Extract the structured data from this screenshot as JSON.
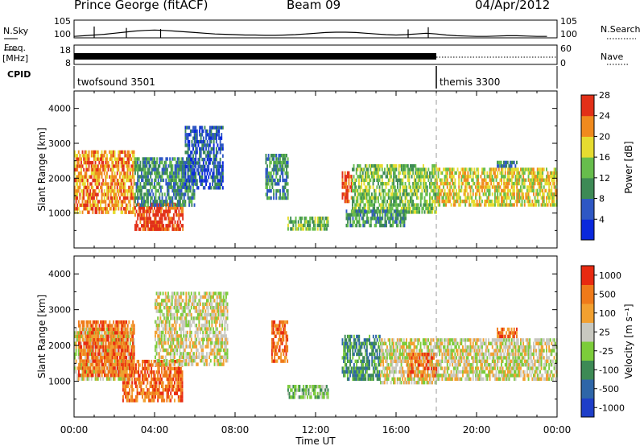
{
  "header": {
    "station": "Prince George (fitACF)",
    "beam": "Beam 09",
    "date": "04/Apr/2012"
  },
  "noise_panel": {
    "left_label": "N.Sky",
    "right_label": "N.Search",
    "ticks": [
      "10^5",
      "10^0"
    ],
    "sky_noise": [
      0.4,
      0.6,
      0.8,
      1.0,
      1.3,
      1.6,
      1.9,
      2.1,
      2.2,
      2.1,
      1.9,
      1.7,
      1.5,
      1.3,
      1.1,
      1.0,
      0.9,
      0.8,
      0.8,
      0.7,
      0.7,
      0.8,
      0.9,
      1.1,
      1.3,
      1.5,
      1.6,
      1.6,
      1.5,
      1.3,
      1.1,
      0.9,
      0.8,
      0.9,
      1.1,
      1.3,
      1.1,
      0.8,
      0.6,
      0.5,
      0.4,
      0.4,
      0.5,
      0.6,
      0.6,
      0.5,
      0.4,
      0.4
    ],
    "spikes": [
      {
        "t": 1.0,
        "v": 3.2
      },
      {
        "t": 2.6,
        "v": 2.8
      },
      {
        "t": 4.3,
        "v": 2.5
      },
      {
        "t": 16.6,
        "v": 2.4
      },
      {
        "t": 17.6,
        "v": 3.0
      }
    ]
  },
  "freq_panel": {
    "left_label_1": "Freq.",
    "left_label_2": "[MHz]",
    "right_label": "Nave",
    "left_ticks": [
      "18",
      "8"
    ],
    "right_ticks": [
      "60",
      "0"
    ],
    "filled_until": 18.0
  },
  "cpid": {
    "label": "CPID",
    "segments": [
      {
        "name": "twofsound",
        "id": "3501",
        "start": 0.0,
        "end": 18.0
      },
      {
        "name": "themis",
        "id": "3300",
        "start": 18.0,
        "end": 24.0
      }
    ],
    "boundary": 18.0
  },
  "chart_data": [
    {
      "type": "heatmap",
      "ylabel": "Slant Range [km]",
      "ylim": [
        0,
        4500
      ],
      "yticks": [
        1000,
        2000,
        3000,
        4000
      ],
      "xlim": [
        0,
        24
      ],
      "colorbar": {
        "label": "Power [dB]",
        "ticks": [
          4,
          8,
          12,
          16,
          20,
          24,
          28
        ],
        "colors": [
          "#0a28dc",
          "#2e57c4",
          "#3d8a55",
          "#67bd4c",
          "#e6dc30",
          "#f08a1e",
          "#e23018"
        ]
      },
      "echo_regions": [
        {
          "t0": 0.0,
          "t1": 3.0,
          "r0": 1000,
          "r1": 2800,
          "level": 5
        },
        {
          "t0": 3.0,
          "t1": 5.4,
          "r0": 550,
          "r1": 1300,
          "level": 6
        },
        {
          "t0": 3.0,
          "t1": 6.0,
          "r0": 1200,
          "r1": 2600,
          "level": 2
        },
        {
          "t0": 5.5,
          "t1": 7.4,
          "r0": 1700,
          "r1": 3500,
          "level": 1
        },
        {
          "t0": 9.5,
          "t1": 10.6,
          "r0": 1400,
          "r1": 2700,
          "level": 2
        },
        {
          "t0": 10.6,
          "t1": 12.6,
          "r0": 500,
          "r1": 900,
          "level": 3
        },
        {
          "t0": 13.3,
          "t1": 13.8,
          "r0": 1300,
          "r1": 2200,
          "level": 6
        },
        {
          "t0": 13.8,
          "t1": 18.0,
          "r0": 1000,
          "r1": 2400,
          "level": 3
        },
        {
          "t0": 13.5,
          "t1": 16.5,
          "r0": 600,
          "r1": 1100,
          "level": 2
        },
        {
          "t0": 18.0,
          "t1": 24.0,
          "r0": 1200,
          "r1": 2300,
          "level": 4
        },
        {
          "t0": 21.0,
          "t1": 22.0,
          "r0": 2300,
          "r1": 2500,
          "level": 2
        }
      ]
    },
    {
      "type": "heatmap",
      "ylabel": "Slant Range [km]",
      "ylim": [
        0,
        4500
      ],
      "yticks": [
        1000,
        2000,
        3000,
        4000
      ],
      "xlim": [
        0,
        24
      ],
      "colorbar": {
        "label": "Velocity [m s^-1]",
        "ticks": [
          "1000",
          "500",
          "100",
          "25",
          "-25",
          "-100",
          "-500",
          "-1000"
        ],
        "colors": [
          "#1e3ec8",
          "#2e66a8",
          "#3d8a55",
          "#7ccc3a",
          "#c8c8c0",
          "#f2a030",
          "#ef7a1a",
          "#e82a10"
        ]
      },
      "echo_regions": [
        {
          "t0": 0.0,
          "t1": 3.0,
          "r0": 1100,
          "r1": 2500,
          "level": 4
        },
        {
          "t0": 0.2,
          "t1": 3.0,
          "r0": 1200,
          "r1": 2700,
          "level": 6
        },
        {
          "t0": 2.4,
          "t1": 5.4,
          "r0": 500,
          "r1": 1600,
          "level": 6
        },
        {
          "t0": 4.0,
          "t1": 7.6,
          "r0": 1500,
          "r1": 3500,
          "level": 4
        },
        {
          "t0": 9.8,
          "t1": 10.6,
          "r0": 1600,
          "r1": 2700,
          "level": 6
        },
        {
          "t0": 10.6,
          "t1": 12.6,
          "r0": 600,
          "r1": 900,
          "level": 3
        },
        {
          "t0": 13.3,
          "t1": 15.2,
          "r0": 1100,
          "r1": 2300,
          "level": 2
        },
        {
          "t0": 15.2,
          "t1": 18.0,
          "r0": 1000,
          "r1": 2200,
          "level": 4
        },
        {
          "t0": 16.5,
          "t1": 18.0,
          "r0": 1200,
          "r1": 1800,
          "level": 6
        },
        {
          "t0": 18.0,
          "t1": 24.0,
          "r0": 1100,
          "r1": 2200,
          "level": 4
        },
        {
          "t0": 21.0,
          "t1": 22.0,
          "r0": 2300,
          "r1": 2500,
          "level": 6
        }
      ]
    }
  ],
  "x_axis": {
    "label": "Time UT",
    "tick_hours": [
      0,
      4,
      8,
      12,
      16,
      20,
      24
    ],
    "tick_labels": [
      "00:00",
      "04:00",
      "08:00",
      "12:00",
      "16:00",
      "20:00",
      "00:00"
    ]
  }
}
